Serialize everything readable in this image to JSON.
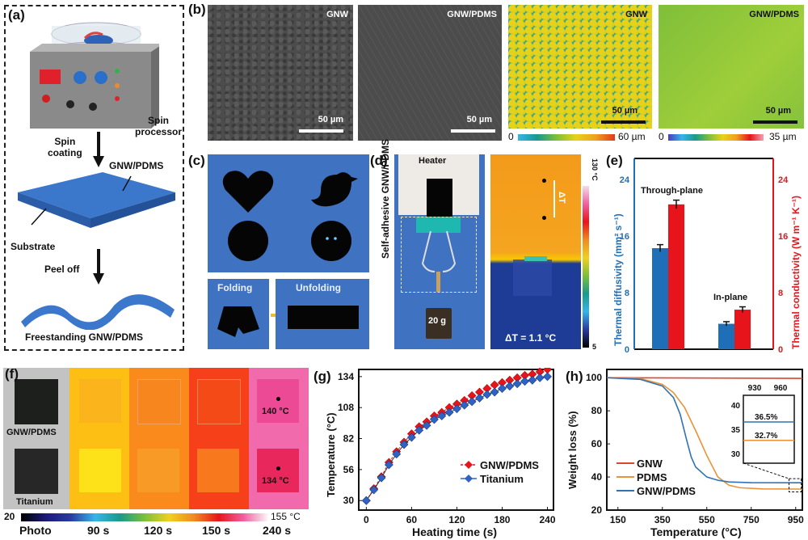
{
  "figure": {
    "panels": {
      "a": {
        "label": "(a)",
        "spin_processor": "Spin processor",
        "spin_processor_l1": "Spin",
        "spin_processor_l2": "processor",
        "spin_coating_l1": "Spin",
        "spin_coating_l2": "coating",
        "film": "GNW/PDMS",
        "substrate": "Substrate",
        "peel_off": "Peel off",
        "freestanding": "Freestanding GNW/PDMS"
      },
      "b": {
        "label": "(b)",
        "sem1_tag": "GNW",
        "sem2_tag": "GNW/PDMS",
        "map1_tag": "GNW",
        "map2_tag": "GNW/PDMS",
        "scale": "50 µm",
        "map1_cbar_min": "0",
        "map1_cbar_max": "60 µm",
        "map2_cbar_min": "0",
        "map2_cbar_max": "35 µm"
      },
      "c": {
        "label": "(c)",
        "folding": "Folding",
        "unfolding": "Unfolding"
      },
      "d": {
        "label": "(d)",
        "heater": "Heater",
        "side_label": "Self-adhesive GNW/PDMS",
        "weight": "20 g",
        "delta_marker": "ΔT",
        "delta_t": "ΔT = 1.1 °C",
        "cbar_max": "130 °C",
        "cbar_min": "5"
      },
      "f": {
        "label": "(f)",
        "row1": "GNW/PDMS",
        "row2": "Titanium",
        "temp1": "140 °C",
        "temp2": "134 °C",
        "cbar_min": "20",
        "cbar_max": "155 °C",
        "columns": [
          "Photo",
          "90 s",
          "120 s",
          "150 s",
          "240 s"
        ]
      }
    }
  },
  "chart_data": [
    {
      "id": "e",
      "label": "(e)",
      "type": "bar",
      "categories": [
        "Through-plane",
        "In-plane"
      ],
      "series": [
        {
          "name": "Thermal diffusivity",
          "axis": "left",
          "color": "#1f6fb8",
          "values": [
            14.3,
            3.6
          ],
          "errors": [
            0.5,
            0.3
          ]
        },
        {
          "name": "Thermal conductivity",
          "axis": "right",
          "color": "#e8141b",
          "values": [
            20.5,
            5.6
          ],
          "errors": [
            0.6,
            0.4
          ]
        }
      ],
      "ylabel_left": "Thermal diffusivity (mm² s⁻¹)",
      "ylabel_right": "Thermal conductivity (W m⁻¹ K⁻¹)",
      "ylim": [
        0,
        27
      ],
      "yticks": [
        0,
        8,
        16,
        24
      ],
      "grid": false
    },
    {
      "id": "g",
      "label": "(g)",
      "type": "line",
      "xlabel": "Heating time (s)",
      "ylabel": "Temperature (°C)",
      "xlim": [
        -10,
        248
      ],
      "ylim": [
        22,
        140
      ],
      "xticks": [
        0,
        60,
        120,
        180,
        240
      ],
      "yticks": [
        30,
        56,
        82,
        108,
        134
      ],
      "x": [
        0,
        10,
        20,
        30,
        40,
        50,
        60,
        70,
        80,
        90,
        100,
        110,
        120,
        130,
        140,
        150,
        160,
        170,
        180,
        190,
        200,
        210,
        220,
        230,
        240
      ],
      "series": [
        {
          "name": "GNW/PDMS",
          "color": "#e8141b",
          "marker": "diamond",
          "values": [
            30,
            40,
            50,
            62,
            71,
            79,
            86,
            92,
            96,
            101,
            104,
            108,
            111,
            114,
            118,
            121,
            124,
            127,
            129,
            131,
            133,
            135,
            136,
            138,
            140
          ]
        },
        {
          "name": "Titanium",
          "color": "#2e63c4",
          "marker": "diamond",
          "values": [
            30,
            39,
            49,
            60,
            69,
            77,
            83,
            89,
            93,
            98,
            101,
            104,
            107,
            110,
            113,
            116,
            119,
            121,
            124,
            126,
            128,
            130,
            131,
            133,
            134
          ]
        }
      ],
      "legend": "center-right",
      "grid": false
    },
    {
      "id": "h",
      "label": "(h)",
      "type": "line",
      "xlabel": "Temperature (°C)",
      "ylabel": "Weight loss (%)",
      "xlim": [
        100,
        980
      ],
      "ylim": [
        20,
        105
      ],
      "xticks": [
        150,
        350,
        550,
        750,
        950
      ],
      "yticks": [
        20,
        40,
        60,
        80,
        100
      ],
      "series": [
        {
          "name": "GNW",
          "color": "#e0442a",
          "x": [
            100,
            980
          ],
          "values": [
            100,
            99.6
          ]
        },
        {
          "name": "PDMS",
          "color": "#e8923a",
          "x": [
            100,
            250,
            350,
            400,
            450,
            500,
            550,
            600,
            650,
            700,
            800,
            980
          ],
          "values": [
            100,
            99.5,
            96,
            91,
            82,
            68,
            53,
            40,
            35,
            33.5,
            32.8,
            32.7
          ]
        },
        {
          "name": "GNW/PDMS",
          "color": "#2f72b5",
          "x": [
            100,
            250,
            350,
            400,
            430,
            460,
            480,
            500,
            550,
            600,
            650,
            750,
            980
          ],
          "values": [
            100,
            99,
            95,
            88,
            78,
            62,
            52,
            46,
            40,
            38,
            37,
            36.6,
            36.5
          ]
        }
      ],
      "inset": {
        "xticks": [
          930,
          960
        ],
        "yticks": [
          30,
          35,
          40
        ],
        "ylim": [
          28,
          42
        ],
        "annotations": [
          "36.5%",
          "32.7%"
        ],
        "lines": [
          {
            "series": "GNW/PDMS",
            "value": 36.5
          },
          {
            "series": "PDMS",
            "value": 32.7
          }
        ]
      },
      "legend": "bottom-left",
      "grid": false
    }
  ]
}
